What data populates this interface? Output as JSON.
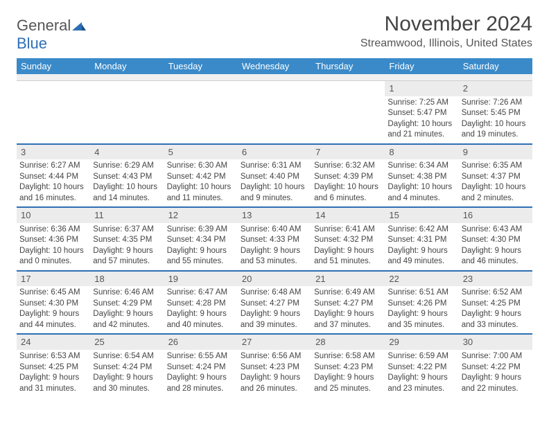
{
  "brand": {
    "part1": "General",
    "part2": "Blue"
  },
  "title": "November 2024",
  "location": "Streamwood, Illinois, United States",
  "colors": {
    "header_bg": "#3a8ac9",
    "header_text": "#ffffff",
    "week_divider": "#2d6fb5",
    "daynum_bg": "#ececec",
    "body_text": "#444444",
    "brand_gray": "#555555",
    "brand_blue": "#2d6fb5",
    "page_bg": "#ffffff"
  },
  "layout": {
    "columns": 7,
    "rows": 5,
    "cell_fontsize_pt": 8.5,
    "title_fontsize_pt": 22,
    "weekday_fontsize_pt": 10
  },
  "weekdays": [
    "Sunday",
    "Monday",
    "Tuesday",
    "Wednesday",
    "Thursday",
    "Friday",
    "Saturday"
  ],
  "weeks": [
    [
      {
        "day": "",
        "sunrise": "",
        "sunset": "",
        "daylight": ""
      },
      {
        "day": "",
        "sunrise": "",
        "sunset": "",
        "daylight": ""
      },
      {
        "day": "",
        "sunrise": "",
        "sunset": "",
        "daylight": ""
      },
      {
        "day": "",
        "sunrise": "",
        "sunset": "",
        "daylight": ""
      },
      {
        "day": "",
        "sunrise": "",
        "sunset": "",
        "daylight": ""
      },
      {
        "day": "1",
        "sunrise": "Sunrise: 7:25 AM",
        "sunset": "Sunset: 5:47 PM",
        "daylight": "Daylight: 10 hours and 21 minutes."
      },
      {
        "day": "2",
        "sunrise": "Sunrise: 7:26 AM",
        "sunset": "Sunset: 5:45 PM",
        "daylight": "Daylight: 10 hours and 19 minutes."
      }
    ],
    [
      {
        "day": "3",
        "sunrise": "Sunrise: 6:27 AM",
        "sunset": "Sunset: 4:44 PM",
        "daylight": "Daylight: 10 hours and 16 minutes."
      },
      {
        "day": "4",
        "sunrise": "Sunrise: 6:29 AM",
        "sunset": "Sunset: 4:43 PM",
        "daylight": "Daylight: 10 hours and 14 minutes."
      },
      {
        "day": "5",
        "sunrise": "Sunrise: 6:30 AM",
        "sunset": "Sunset: 4:42 PM",
        "daylight": "Daylight: 10 hours and 11 minutes."
      },
      {
        "day": "6",
        "sunrise": "Sunrise: 6:31 AM",
        "sunset": "Sunset: 4:40 PM",
        "daylight": "Daylight: 10 hours and 9 minutes."
      },
      {
        "day": "7",
        "sunrise": "Sunrise: 6:32 AM",
        "sunset": "Sunset: 4:39 PM",
        "daylight": "Daylight: 10 hours and 6 minutes."
      },
      {
        "day": "8",
        "sunrise": "Sunrise: 6:34 AM",
        "sunset": "Sunset: 4:38 PM",
        "daylight": "Daylight: 10 hours and 4 minutes."
      },
      {
        "day": "9",
        "sunrise": "Sunrise: 6:35 AM",
        "sunset": "Sunset: 4:37 PM",
        "daylight": "Daylight: 10 hours and 2 minutes."
      }
    ],
    [
      {
        "day": "10",
        "sunrise": "Sunrise: 6:36 AM",
        "sunset": "Sunset: 4:36 PM",
        "daylight": "Daylight: 10 hours and 0 minutes."
      },
      {
        "day": "11",
        "sunrise": "Sunrise: 6:37 AM",
        "sunset": "Sunset: 4:35 PM",
        "daylight": "Daylight: 9 hours and 57 minutes."
      },
      {
        "day": "12",
        "sunrise": "Sunrise: 6:39 AM",
        "sunset": "Sunset: 4:34 PM",
        "daylight": "Daylight: 9 hours and 55 minutes."
      },
      {
        "day": "13",
        "sunrise": "Sunrise: 6:40 AM",
        "sunset": "Sunset: 4:33 PM",
        "daylight": "Daylight: 9 hours and 53 minutes."
      },
      {
        "day": "14",
        "sunrise": "Sunrise: 6:41 AM",
        "sunset": "Sunset: 4:32 PM",
        "daylight": "Daylight: 9 hours and 51 minutes."
      },
      {
        "day": "15",
        "sunrise": "Sunrise: 6:42 AM",
        "sunset": "Sunset: 4:31 PM",
        "daylight": "Daylight: 9 hours and 49 minutes."
      },
      {
        "day": "16",
        "sunrise": "Sunrise: 6:43 AM",
        "sunset": "Sunset: 4:30 PM",
        "daylight": "Daylight: 9 hours and 46 minutes."
      }
    ],
    [
      {
        "day": "17",
        "sunrise": "Sunrise: 6:45 AM",
        "sunset": "Sunset: 4:30 PM",
        "daylight": "Daylight: 9 hours and 44 minutes."
      },
      {
        "day": "18",
        "sunrise": "Sunrise: 6:46 AM",
        "sunset": "Sunset: 4:29 PM",
        "daylight": "Daylight: 9 hours and 42 minutes."
      },
      {
        "day": "19",
        "sunrise": "Sunrise: 6:47 AM",
        "sunset": "Sunset: 4:28 PM",
        "daylight": "Daylight: 9 hours and 40 minutes."
      },
      {
        "day": "20",
        "sunrise": "Sunrise: 6:48 AM",
        "sunset": "Sunset: 4:27 PM",
        "daylight": "Daylight: 9 hours and 39 minutes."
      },
      {
        "day": "21",
        "sunrise": "Sunrise: 6:49 AM",
        "sunset": "Sunset: 4:27 PM",
        "daylight": "Daylight: 9 hours and 37 minutes."
      },
      {
        "day": "22",
        "sunrise": "Sunrise: 6:51 AM",
        "sunset": "Sunset: 4:26 PM",
        "daylight": "Daylight: 9 hours and 35 minutes."
      },
      {
        "day": "23",
        "sunrise": "Sunrise: 6:52 AM",
        "sunset": "Sunset: 4:25 PM",
        "daylight": "Daylight: 9 hours and 33 minutes."
      }
    ],
    [
      {
        "day": "24",
        "sunrise": "Sunrise: 6:53 AM",
        "sunset": "Sunset: 4:25 PM",
        "daylight": "Daylight: 9 hours and 31 minutes."
      },
      {
        "day": "25",
        "sunrise": "Sunrise: 6:54 AM",
        "sunset": "Sunset: 4:24 PM",
        "daylight": "Daylight: 9 hours and 30 minutes."
      },
      {
        "day": "26",
        "sunrise": "Sunrise: 6:55 AM",
        "sunset": "Sunset: 4:24 PM",
        "daylight": "Daylight: 9 hours and 28 minutes."
      },
      {
        "day": "27",
        "sunrise": "Sunrise: 6:56 AM",
        "sunset": "Sunset: 4:23 PM",
        "daylight": "Daylight: 9 hours and 26 minutes."
      },
      {
        "day": "28",
        "sunrise": "Sunrise: 6:58 AM",
        "sunset": "Sunset: 4:23 PM",
        "daylight": "Daylight: 9 hours and 25 minutes."
      },
      {
        "day": "29",
        "sunrise": "Sunrise: 6:59 AM",
        "sunset": "Sunset: 4:22 PM",
        "daylight": "Daylight: 9 hours and 23 minutes."
      },
      {
        "day": "30",
        "sunrise": "Sunrise: 7:00 AM",
        "sunset": "Sunset: 4:22 PM",
        "daylight": "Daylight: 9 hours and 22 minutes."
      }
    ]
  ]
}
